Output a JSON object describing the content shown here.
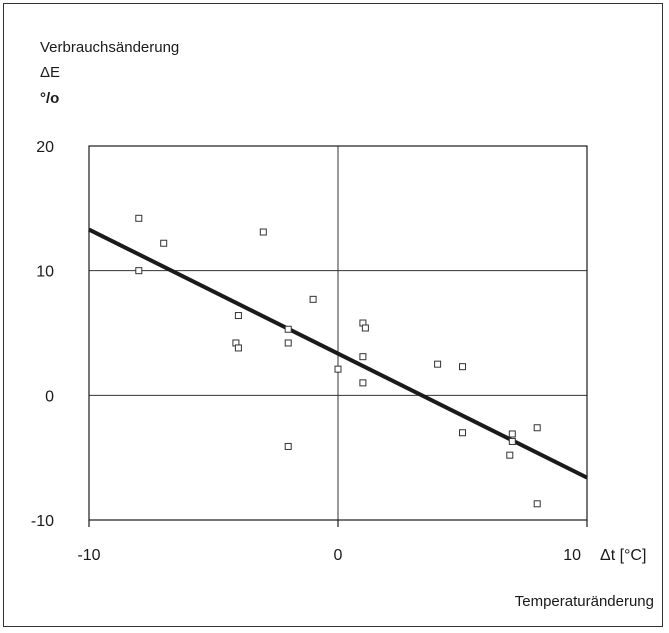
{
  "chart_data": {
    "type": "scatter",
    "ylabel_lines": [
      "Verbrauchsänderung",
      "ΔE",
      "°/o"
    ],
    "xlabel": "Temperaturänderung",
    "x_unit_label": "Δt [°C]",
    "xlim": [
      -10,
      10
    ],
    "ylim": [
      -10,
      20
    ],
    "x_ticks": [
      -10,
      0,
      10
    ],
    "x_tick_labels": [
      "-10",
      "0",
      "10"
    ],
    "y_ticks": [
      -10,
      0,
      10,
      20
    ],
    "y_tick_labels": [
      "-10",
      "0",
      "10",
      "20"
    ],
    "grid_x": [
      0
    ],
    "grid_y": [
      0,
      10,
      20
    ],
    "points": [
      {
        "x": -8.0,
        "y": 14.2
      },
      {
        "x": -8.0,
        "y": 10.0
      },
      {
        "x": -7.0,
        "y": 12.2
      },
      {
        "x": -3.0,
        "y": 13.1
      },
      {
        "x": -4.0,
        "y": 6.4
      },
      {
        "x": -4.1,
        "y": 4.2
      },
      {
        "x": -4.0,
        "y": 3.8
      },
      {
        "x": -2.0,
        "y": 5.3
      },
      {
        "x": -2.0,
        "y": 4.2
      },
      {
        "x": -2.0,
        "y": -4.1
      },
      {
        "x": -1.0,
        "y": 7.7
      },
      {
        "x": 0.0,
        "y": 2.1
      },
      {
        "x": 1.0,
        "y": 5.8
      },
      {
        "x": 1.1,
        "y": 5.4
      },
      {
        "x": 1.0,
        "y": 3.1
      },
      {
        "x": 1.0,
        "y": 1.0
      },
      {
        "x": 4.0,
        "y": 2.5
      },
      {
        "x": 5.0,
        "y": 2.3
      },
      {
        "x": 5.0,
        "y": -3.0
      },
      {
        "x": 7.0,
        "y": -3.1
      },
      {
        "x": 7.0,
        "y": -3.7
      },
      {
        "x": 6.9,
        "y": -4.8
      },
      {
        "x": 8.0,
        "y": -2.6
      },
      {
        "x": 8.0,
        "y": -8.7
      }
    ],
    "trend_line": {
      "x": [
        -10,
        10
      ],
      "y": [
        13.3,
        -6.6
      ]
    },
    "colors": {
      "points": "#333333",
      "trend": "#1a1a1a",
      "grid": "#333333"
    }
  }
}
